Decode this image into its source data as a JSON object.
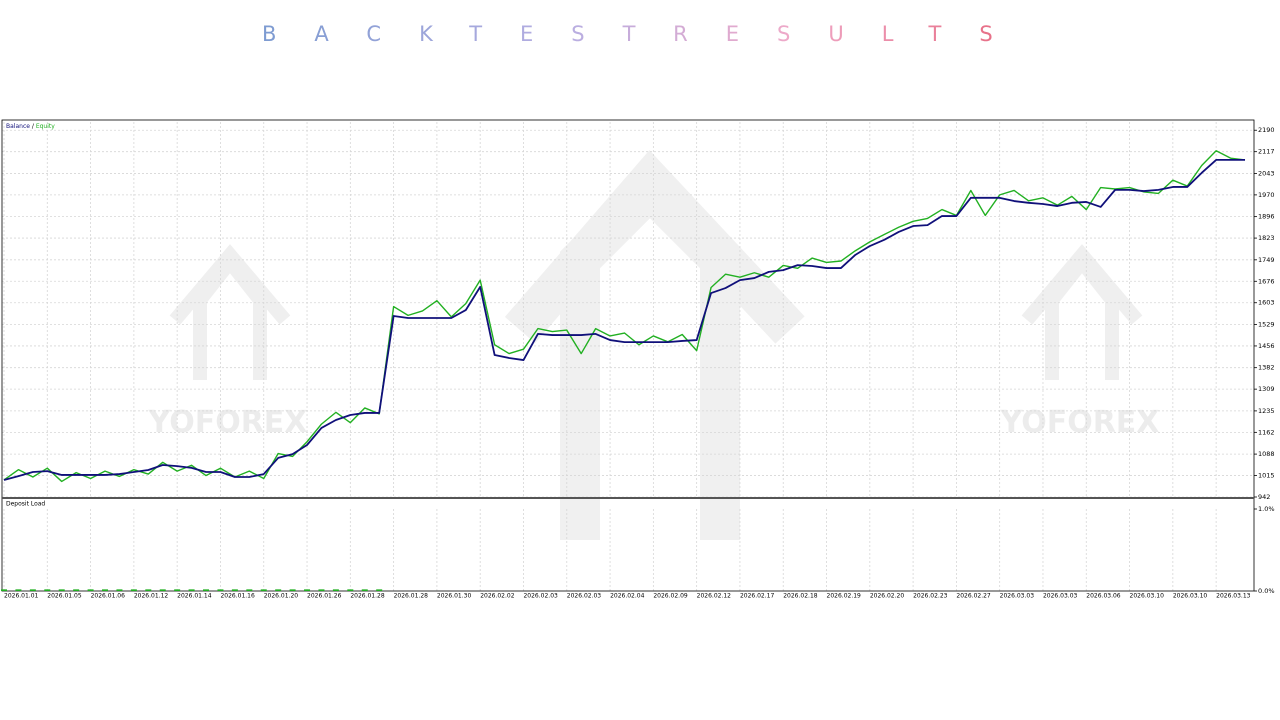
{
  "title": "BACKTEST RESULTS",
  "watermark": "YOFOREX",
  "chart_data": [
    {
      "type": "line",
      "legend": [
        "Balance",
        "/",
        "Equity"
      ],
      "categories": [
        "2026.01.01",
        null,
        null,
        "2026.01.05",
        null,
        null,
        "2026.01.06",
        null,
        null,
        "2026.01.12",
        null,
        null,
        "2026.01.14",
        null,
        null,
        "2026.01.16",
        null,
        null,
        "2026.01.20",
        null,
        null,
        "2026.01.26",
        null,
        null,
        "2026.01.28",
        null,
        null,
        "2026.01.28",
        null,
        null,
        "2026.01.30",
        null,
        null,
        "2026.02.02",
        null,
        null,
        "2026.02.03",
        null,
        null,
        "2026.02.03",
        null,
        null,
        "2026.02.04",
        null,
        null,
        "2026.02.09",
        null,
        null,
        "2026.02.12",
        null,
        null,
        "2026.02.17",
        null,
        null,
        "2026.02.18",
        null,
        null,
        "2026.02.19",
        null,
        null,
        "2026.02.20",
        null,
        null,
        "2026.02.23",
        null,
        null,
        "2026.02.27",
        null,
        null,
        "2026.03.03",
        null,
        null,
        "2026.03.03",
        null,
        null,
        "2026.03.06",
        null,
        null,
        "2026.03.10",
        null,
        null,
        "2026.03.10",
        null,
        null,
        "2026.03.13",
        null,
        null
      ],
      "series": [
        {
          "name": "Equity",
          "color": "#22b022",
          "values": [
            1000,
            1035,
            1010,
            1040,
            995,
            1025,
            1005,
            1030,
            1012,
            1035,
            1020,
            1060,
            1030,
            1050,
            1015,
            1040,
            1010,
            1030,
            1005,
            1090,
            1080,
            1130,
            1190,
            1230,
            1195,
            1245,
            1225,
            1590,
            1560,
            1575,
            1610,
            1555,
            1600,
            1680,
            1460,
            1430,
            1445,
            1515,
            1505,
            1510,
            1430,
            1515,
            1490,
            1500,
            1460,
            1490,
            1470,
            1495,
            1440,
            1655,
            1700,
            1690,
            1705,
            1690,
            1730,
            1720,
            1755,
            1740,
            1745,
            1780,
            1810,
            1835,
            1860,
            1880,
            1890,
            1920,
            1900,
            1985,
            1900,
            1970,
            1985,
            1950,
            1960,
            1935,
            1965,
            1920,
            1995,
            1990,
            1995,
            1980,
            1975,
            2020,
            2000,
            2070,
            2120,
            2095,
            2089
          ]
        },
        {
          "name": "Balance",
          "color": "#10107a",
          "values": [
            1000,
            1013,
            1027,
            1030,
            1017,
            1017,
            1017,
            1017,
            1020,
            1027,
            1034,
            1051,
            1047,
            1041,
            1027,
            1027,
            1010,
            1010,
            1020,
            1075,
            1088,
            1119,
            1177,
            1204,
            1221,
            1228,
            1228,
            1558,
            1551,
            1551,
            1551,
            1551,
            1578,
            1657,
            1425,
            1415,
            1408,
            1497,
            1493,
            1493,
            1493,
            1497,
            1476,
            1469,
            1469,
            1469,
            1469,
            1473,
            1476,
            1636,
            1653,
            1680,
            1687,
            1708,
            1714,
            1731,
            1728,
            1721,
            1721,
            1766,
            1796,
            1817,
            1844,
            1864,
            1867,
            1898,
            1898,
            1960,
            1960,
            1960,
            1949,
            1943,
            1939,
            1932,
            1943,
            1946,
            1929,
            1987,
            1987,
            1983,
            1987,
            1997,
            1997,
            2045,
            2089,
            2089,
            2089
          ]
        }
      ],
      "ylim": [
        942,
        2218
      ],
      "yticks": [
        2190,
        2117,
        2043,
        1970,
        1896,
        1823,
        1749,
        1676,
        1603,
        1529,
        1456,
        1382,
        1309,
        1235,
        1162,
        1088,
        1015,
        942
      ],
      "grid": true
    },
    {
      "type": "bar",
      "title": "Deposit Load",
      "color": "#22b022",
      "values": [
        0.02,
        0.02,
        0.02,
        0.02,
        0.02,
        0.02,
        0.02,
        0.02,
        0.02,
        0.02,
        0.02,
        0.02,
        0.02,
        0.02,
        0.02,
        0.02,
        0.02,
        0.02,
        0.02,
        0.02,
        0.02,
        0.02,
        0.02,
        0.02,
        0.02,
        0.02,
        0.02,
        0,
        0,
        0,
        0,
        0,
        0,
        0,
        0,
        0,
        0,
        0,
        0,
        0,
        0,
        0,
        0,
        0,
        0,
        0,
        0,
        0,
        0,
        0,
        0,
        0,
        0,
        0,
        0,
        0,
        0,
        0,
        0,
        0,
        0,
        0,
        0,
        0,
        0,
        0,
        0,
        0,
        0,
        0,
        0,
        0,
        0,
        0,
        0,
        0,
        0,
        0,
        0,
        0,
        0,
        0,
        0,
        0,
        0,
        0,
        0
      ],
      "ylim": [
        0,
        1
      ],
      "yticks": [
        {
          "value": 1,
          "label": "1.0%"
        },
        {
          "value": 0,
          "label": "0.0%"
        }
      ]
    }
  ]
}
